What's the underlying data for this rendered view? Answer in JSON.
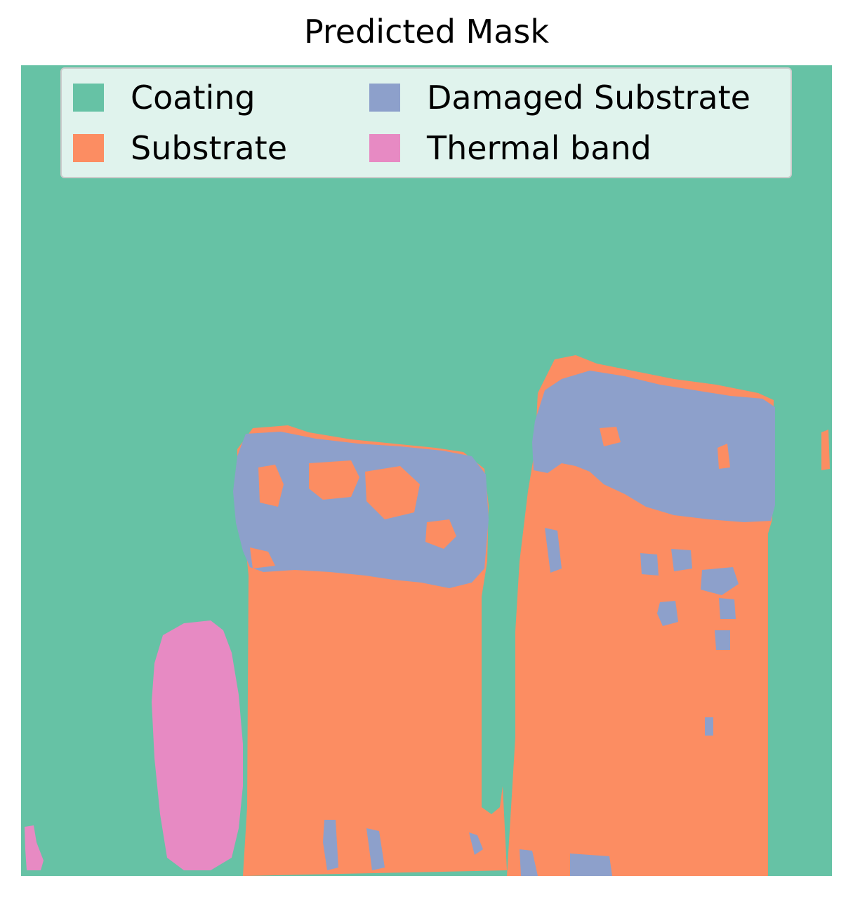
{
  "title": "Predicted Mask",
  "legend": {
    "items": [
      {
        "label": "Coating",
        "color": "#66c2a5"
      },
      {
        "label": "Damaged Substrate",
        "color": "#8da0cb"
      },
      {
        "label": "Substrate",
        "color": "#fc8d62"
      },
      {
        "label": "Thermal band",
        "color": "#e78ac3"
      }
    ]
  },
  "classes": {
    "coating": "#66c2a5",
    "substrate": "#fc8d62",
    "damaged_substrate": "#8da0cb",
    "thermal_band": "#e78ac3"
  }
}
